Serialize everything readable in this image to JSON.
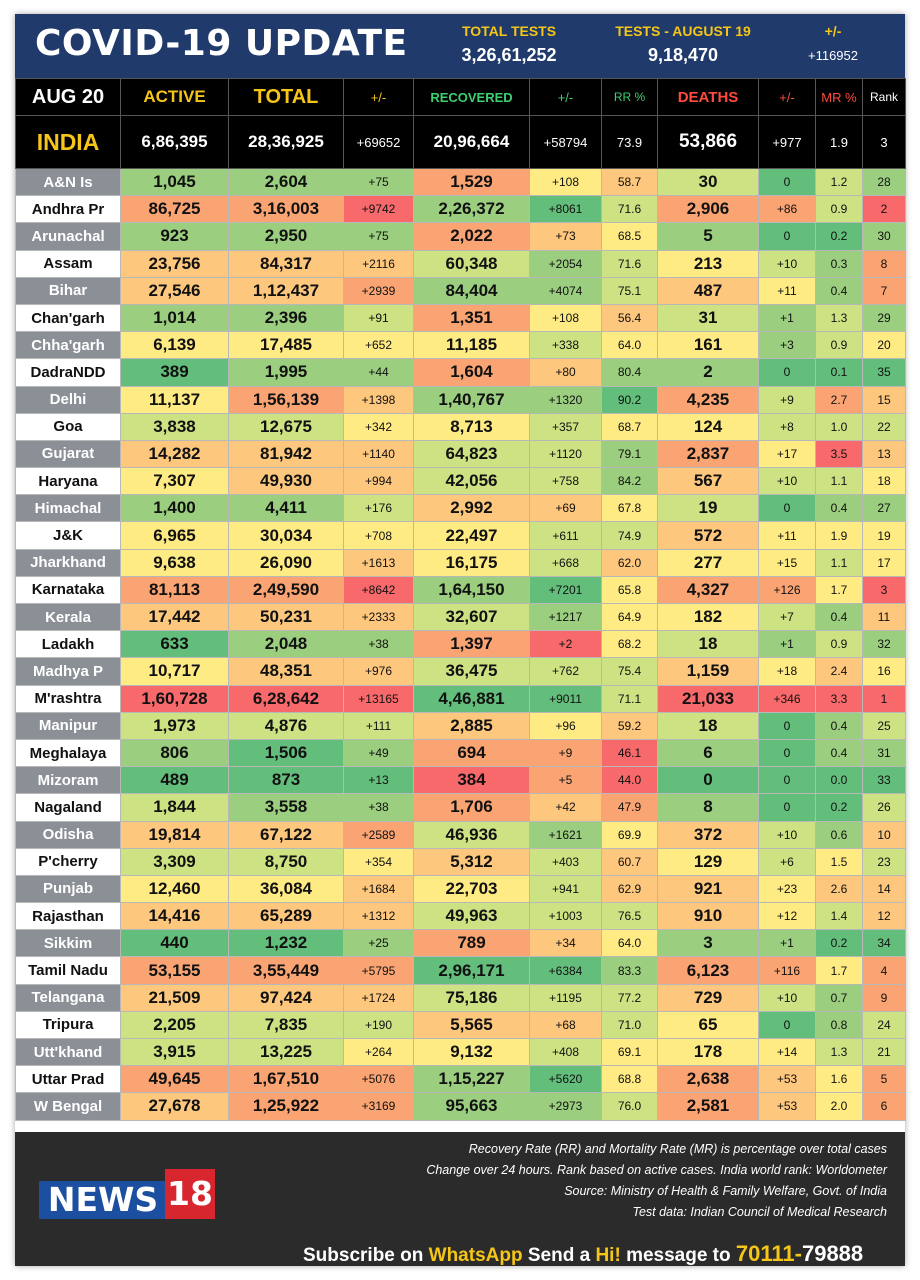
{
  "header": {
    "title": "COVID-19 UPDATE",
    "total_tests_label": "TOTAL TESTS",
    "total_tests_value": "3,26,61,252",
    "tests_day_label": "TESTS - AUGUST 19",
    "tests_day_value": "9,18,470",
    "change_label": "+/-",
    "change_value": "+116952"
  },
  "columns": {
    "date": "AUG 20",
    "active": "ACTIVE",
    "total": "TOTAL",
    "total_change": "+/-",
    "recovered": "RECOVERED",
    "recovered_change": "+/-",
    "rr": "RR %",
    "deaths": "DEATHS",
    "deaths_change": "+/-",
    "mr": "MR %",
    "rank": "Rank"
  },
  "colors": {
    "header_bg": "#1f3a6b",
    "label_yellow": "#f5c518",
    "recovered_green": "#3cd070",
    "deaths_red": "#ff4b3e",
    "footer_bg": "#2b2b2b",
    "logo_blue": "#1d4fa0",
    "logo_red": "#d8262e"
  },
  "india": {
    "name": "INDIA",
    "active": "6,86,395",
    "total": "28,36,925",
    "total_change": "+69652",
    "recovered": "20,96,664",
    "recovered_change": "+58794",
    "rr": "73.9",
    "deaths": "53,866",
    "deaths_change": "+977",
    "mr": "1.9",
    "rank": "3"
  },
  "rows": [
    {
      "state": "A&N Is",
      "active": "1,045",
      "total": "2,604",
      "tc": "+75",
      "recovered": "1,529",
      "rc": "+108",
      "rr": "58.7",
      "deaths": "30",
      "dc": "0",
      "mr": "1.2",
      "rank": "28"
    },
    {
      "state": "Andhra Pr",
      "active": "86,725",
      "total": "3,16,003",
      "tc": "+9742",
      "recovered": "2,26,372",
      "rc": "+8061",
      "rr": "71.6",
      "deaths": "2,906",
      "dc": "+86",
      "mr": "0.9",
      "rank": "2"
    },
    {
      "state": "Arunachal",
      "active": "923",
      "total": "2,950",
      "tc": "+75",
      "recovered": "2,022",
      "rc": "+73",
      "rr": "68.5",
      "deaths": "5",
      "dc": "0",
      "mr": "0.2",
      "rank": "30"
    },
    {
      "state": "Assam",
      "active": "23,756",
      "total": "84,317",
      "tc": "+2116",
      "recovered": "60,348",
      "rc": "+2054",
      "rr": "71.6",
      "deaths": "213",
      "dc": "+10",
      "mr": "0.3",
      "rank": "8"
    },
    {
      "state": "Bihar",
      "active": "27,546",
      "total": "1,12,437",
      "tc": "+2939",
      "recovered": "84,404",
      "rc": "+4074",
      "rr": "75.1",
      "deaths": "487",
      "dc": "+11",
      "mr": "0.4",
      "rank": "7"
    },
    {
      "state": "Chan'garh",
      "active": "1,014",
      "total": "2,396",
      "tc": "+91",
      "recovered": "1,351",
      "rc": "+108",
      "rr": "56.4",
      "deaths": "31",
      "dc": "+1",
      "mr": "1.3",
      "rank": "29"
    },
    {
      "state": "Chha'garh",
      "active": "6,139",
      "total": "17,485",
      "tc": "+652",
      "recovered": "11,185",
      "rc": "+338",
      "rr": "64.0",
      "deaths": "161",
      "dc": "+3",
      "mr": "0.9",
      "rank": "20"
    },
    {
      "state": "DadraNDD",
      "active": "389",
      "total": "1,995",
      "tc": "+44",
      "recovered": "1,604",
      "rc": "+80",
      "rr": "80.4",
      "deaths": "2",
      "dc": "0",
      "mr": "0.1",
      "rank": "35"
    },
    {
      "state": "Delhi",
      "active": "11,137",
      "total": "1,56,139",
      "tc": "+1398",
      "recovered": "1,40,767",
      "rc": "+1320",
      "rr": "90.2",
      "deaths": "4,235",
      "dc": "+9",
      "mr": "2.7",
      "rank": "15"
    },
    {
      "state": "Goa",
      "active": "3,838",
      "total": "12,675",
      "tc": "+342",
      "recovered": "8,713",
      "rc": "+357",
      "rr": "68.7",
      "deaths": "124",
      "dc": "+8",
      "mr": "1.0",
      "rank": "22"
    },
    {
      "state": "Gujarat",
      "active": "14,282",
      "total": "81,942",
      "tc": "+1140",
      "recovered": "64,823",
      "rc": "+1120",
      "rr": "79.1",
      "deaths": "2,837",
      "dc": "+17",
      "mr": "3.5",
      "rank": "13"
    },
    {
      "state": "Haryana",
      "active": "7,307",
      "total": "49,930",
      "tc": "+994",
      "recovered": "42,056",
      "rc": "+758",
      "rr": "84.2",
      "deaths": "567",
      "dc": "+10",
      "mr": "1.1",
      "rank": "18"
    },
    {
      "state": "Himachal",
      "active": "1,400",
      "total": "4,411",
      "tc": "+176",
      "recovered": "2,992",
      "rc": "+69",
      "rr": "67.8",
      "deaths": "19",
      "dc": "0",
      "mr": "0.4",
      "rank": "27"
    },
    {
      "state": "J&K",
      "active": "6,965",
      "total": "30,034",
      "tc": "+708",
      "recovered": "22,497",
      "rc": "+611",
      "rr": "74.9",
      "deaths": "572",
      "dc": "+11",
      "mr": "1.9",
      "rank": "19"
    },
    {
      "state": "Jharkhand",
      "active": "9,638",
      "total": "26,090",
      "tc": "+1613",
      "recovered": "16,175",
      "rc": "+668",
      "rr": "62.0",
      "deaths": "277",
      "dc": "+15",
      "mr": "1.1",
      "rank": "17"
    },
    {
      "state": "Karnataka",
      "active": "81,113",
      "total": "2,49,590",
      "tc": "+8642",
      "recovered": "1,64,150",
      "rc": "+7201",
      "rr": "65.8",
      "deaths": "4,327",
      "dc": "+126",
      "mr": "1.7",
      "rank": "3"
    },
    {
      "state": "Kerala",
      "active": "17,442",
      "total": "50,231",
      "tc": "+2333",
      "recovered": "32,607",
      "rc": "+1217",
      "rr": "64.9",
      "deaths": "182",
      "dc": "+7",
      "mr": "0.4",
      "rank": "11"
    },
    {
      "state": "Ladakh",
      "active": "633",
      "total": "2,048",
      "tc": "+38",
      "recovered": "1,397",
      "rc": "+2",
      "rr": "68.2",
      "deaths": "18",
      "dc": "+1",
      "mr": "0.9",
      "rank": "32"
    },
    {
      "state": "Madhya P",
      "active": "10,717",
      "total": "48,351",
      "tc": "+976",
      "recovered": "36,475",
      "rc": "+762",
      "rr": "75.4",
      "deaths": "1,159",
      "dc": "+18",
      "mr": "2.4",
      "rank": "16"
    },
    {
      "state": "M'rashtra",
      "active": "1,60,728",
      "total": "6,28,642",
      "tc": "+13165",
      "recovered": "4,46,881",
      "rc": "+9011",
      "rr": "71.1",
      "deaths": "21,033",
      "dc": "+346",
      "mr": "3.3",
      "rank": "1"
    },
    {
      "state": "Manipur",
      "active": "1,973",
      "total": "4,876",
      "tc": "+111",
      "recovered": "2,885",
      "rc": "+96",
      "rr": "59.2",
      "deaths": "18",
      "dc": "0",
      "mr": "0.4",
      "rank": "25"
    },
    {
      "state": "Meghalaya",
      "active": "806",
      "total": "1,506",
      "tc": "+49",
      "recovered": "694",
      "rc": "+9",
      "rr": "46.1",
      "deaths": "6",
      "dc": "0",
      "mr": "0.4",
      "rank": "31"
    },
    {
      "state": "Mizoram",
      "active": "489",
      "total": "873",
      "tc": "+13",
      "recovered": "384",
      "rc": "+5",
      "rr": "44.0",
      "deaths": "0",
      "dc": "0",
      "mr": "0.0",
      "rank": "33"
    },
    {
      "state": "Nagaland",
      "active": "1,844",
      "total": "3,558",
      "tc": "+38",
      "recovered": "1,706",
      "rc": "+42",
      "rr": "47.9",
      "deaths": "8",
      "dc": "0",
      "mr": "0.2",
      "rank": "26"
    },
    {
      "state": "Odisha",
      "active": "19,814",
      "total": "67,122",
      "tc": "+2589",
      "recovered": "46,936",
      "rc": "+1621",
      "rr": "69.9",
      "deaths": "372",
      "dc": "+10",
      "mr": "0.6",
      "rank": "10"
    },
    {
      "state": "P'cherry",
      "active": "3,309",
      "total": "8,750",
      "tc": "+354",
      "recovered": "5,312",
      "rc": "+403",
      "rr": "60.7",
      "deaths": "129",
      "dc": "+6",
      "mr": "1.5",
      "rank": "23"
    },
    {
      "state": "Punjab",
      "active": "12,460",
      "total": "36,084",
      "tc": "+1684",
      "recovered": "22,703",
      "rc": "+941",
      "rr": "62.9",
      "deaths": "921",
      "dc": "+23",
      "mr": "2.6",
      "rank": "14"
    },
    {
      "state": "Rajasthan",
      "active": "14,416",
      "total": "65,289",
      "tc": "+1312",
      "recovered": "49,963",
      "rc": "+1003",
      "rr": "76.5",
      "deaths": "910",
      "dc": "+12",
      "mr": "1.4",
      "rank": "12"
    },
    {
      "state": "Sikkim",
      "active": "440",
      "total": "1,232",
      "tc": "+25",
      "recovered": "789",
      "rc": "+34",
      "rr": "64.0",
      "deaths": "3",
      "dc": "+1",
      "mr": "0.2",
      "rank": "34"
    },
    {
      "state": "Tamil Nadu",
      "active": "53,155",
      "total": "3,55,449",
      "tc": "+5795",
      "recovered": "2,96,171",
      "rc": "+6384",
      "rr": "83.3",
      "deaths": "6,123",
      "dc": "+116",
      "mr": "1.7",
      "rank": "4"
    },
    {
      "state": "Telangana",
      "active": "21,509",
      "total": "97,424",
      "tc": "+1724",
      "recovered": "75,186",
      "rc": "+1195",
      "rr": "77.2",
      "deaths": "729",
      "dc": "+10",
      "mr": "0.7",
      "rank": "9"
    },
    {
      "state": "Tripura",
      "active": "2,205",
      "total": "7,835",
      "tc": "+190",
      "recovered": "5,565",
      "rc": "+68",
      "rr": "71.0",
      "deaths": "65",
      "dc": "0",
      "mr": "0.8",
      "rank": "24"
    },
    {
      "state": "Utt'khand",
      "active": "3,915",
      "total": "13,225",
      "tc": "+264",
      "recovered": "9,132",
      "rc": "+408",
      "rr": "69.1",
      "deaths": "178",
      "dc": "+14",
      "mr": "1.3",
      "rank": "21"
    },
    {
      "state": "Uttar Prad",
      "active": "49,645",
      "total": "1,67,510",
      "tc": "+5076",
      "recovered": "1,15,227",
      "rc": "+5620",
      "rr": "68.8",
      "deaths": "2,638",
      "dc": "+53",
      "mr": "1.6",
      "rank": "5"
    },
    {
      "state": "W Bengal",
      "active": "27,678",
      "total": "1,25,922",
      "tc": "+3169",
      "recovered": "95,663",
      "rc": "+2973",
      "rr": "76.0",
      "deaths": "2,581",
      "dc": "+53",
      "mr": "2.0",
      "rank": "6"
    }
  ],
  "footer": {
    "notes": [
      "Recovery Rate (RR) and Mortality Rate (MR) is percentage over total cases",
      "Change over 24 hours. Rank based on active cases. India world rank: Worldometer",
      "Source: Ministry of Health & Family Welfare, Govt. of India",
      "Test data: Indian Council of Medical Research"
    ],
    "logo_text": "NEWS",
    "logo_number": "18",
    "subscribe_prefix": "Subscribe on",
    "subscribe_app": "WhatsApp",
    "subscribe_send": "Send a",
    "subscribe_hi": "Hi!",
    "subscribe_message": "message to",
    "phone_part1": "70111-",
    "phone_part2": "79888"
  }
}
